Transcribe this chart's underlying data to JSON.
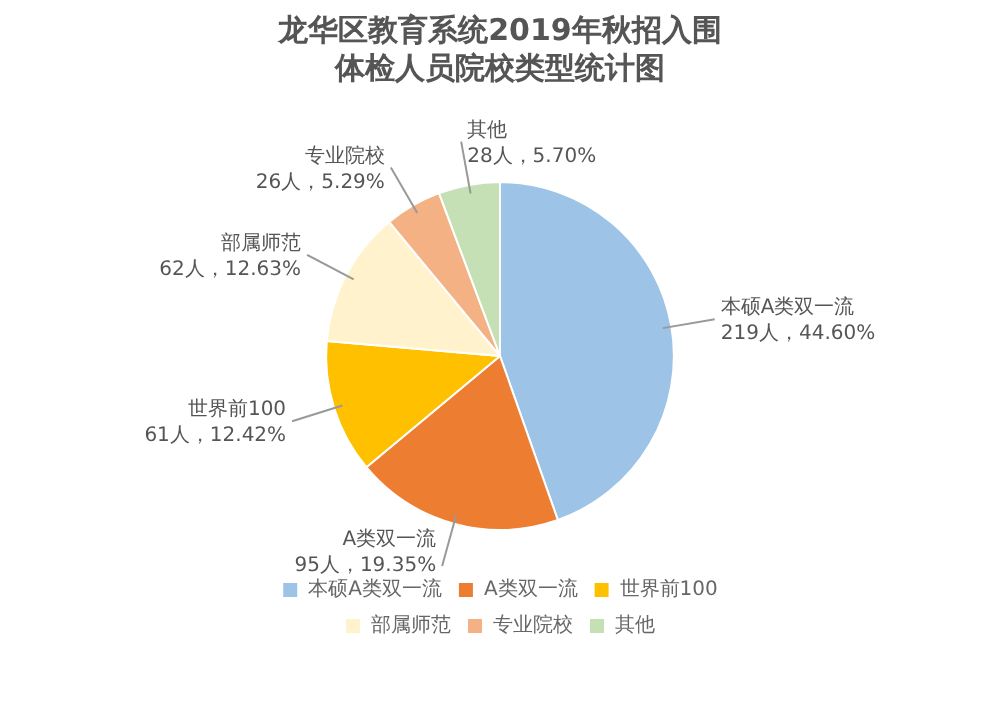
{
  "chart_data": {
    "type": "pie",
    "title": "龙华区教育系统2019年秋招入围体检人员院校类型统计图",
    "categories": [
      "本硕A类双一流",
      "A类双一流",
      "世界前100",
      "部属师范",
      "专业院校",
      "其他"
    ],
    "values": [
      219,
      95,
      61,
      62,
      26,
      28
    ],
    "colors": [
      "#9dc3e6",
      "#ed7d31",
      "#ffc000",
      "#fff2cc",
      "#f4b183",
      "#c5e0b4"
    ],
    "value_labels": [
      "219人，44.60%",
      "95人，19.35%",
      "61人，12.42%",
      "62人，12.63%",
      "26人，5.29%",
      "28人，5.70%"
    ],
    "legend": "bottom"
  }
}
